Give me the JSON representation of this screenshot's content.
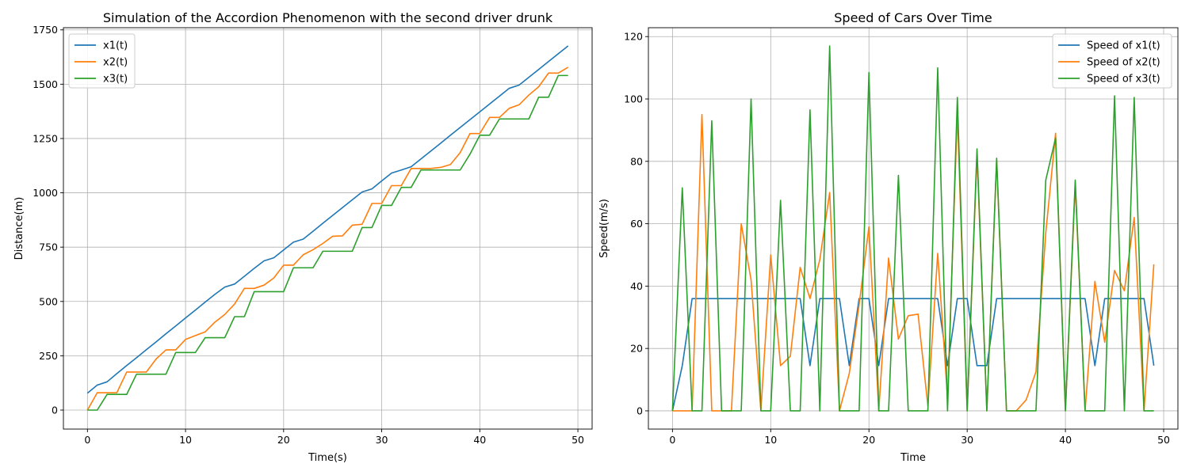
{
  "chart_data": [
    {
      "type": "line",
      "title": "Simulation of the Accordion Phenomenon with the second driver drunk",
      "xlabel": "Time(s)",
      "ylabel": "Distance(m)",
      "xlim": [
        -2.45,
        51.45
      ],
      "ylim": [
        -87.5,
        1760
      ],
      "xticks": [
        0,
        10,
        20,
        30,
        40,
        50
      ],
      "yticks": [
        0,
        250,
        500,
        750,
        1000,
        1250,
        1500,
        1750
      ],
      "grid": true,
      "legend_position": "upper-left",
      "series": [
        {
          "name": "x1(t)",
          "color": "#1f77b4",
          "x": [
            0,
            1,
            2,
            3,
            4,
            5,
            6,
            7,
            8,
            9,
            10,
            11,
            12,
            13,
            14,
            15,
            16,
            17,
            18,
            19,
            20,
            21,
            22,
            23,
            24,
            25,
            26,
            27,
            28,
            29,
            30,
            31,
            32,
            33,
            34,
            35,
            36,
            37,
            38,
            39,
            40,
            41,
            42,
            43,
            44,
            45,
            46,
            47,
            48,
            49
          ],
          "y": [
            78,
            115,
            130,
            168,
            205,
            241,
            278,
            314,
            351,
            387,
            424,
            460,
            497,
            533,
            566,
            580,
            616,
            652,
            687,
            701,
            737,
            773,
            787,
            823,
            860,
            896,
            932,
            968,
            1004,
            1018,
            1055,
            1091,
            1105,
            1120,
            1156,
            1192,
            1228,
            1265,
            1301,
            1337,
            1373,
            1409,
            1445,
            1481,
            1496,
            1532,
            1568,
            1604,
            1640,
            1676
          ]
        },
        {
          "name": "x2(t)",
          "color": "#ff7f0e",
          "x": [
            0,
            1,
            2,
            3,
            4,
            5,
            6,
            7,
            8,
            9,
            10,
            11,
            12,
            13,
            14,
            15,
            16,
            17,
            18,
            19,
            20,
            21,
            22,
            23,
            24,
            25,
            26,
            27,
            28,
            29,
            30,
            31,
            32,
            33,
            34,
            35,
            36,
            37,
            38,
            39,
            40,
            41,
            42,
            43,
            44,
            45,
            46,
            47,
            48,
            49
          ],
          "y": [
            0,
            80,
            80,
            80,
            175,
            175,
            175,
            235,
            277,
            277,
            325,
            343,
            360,
            405,
            440,
            488,
            560,
            560,
            575,
            608,
            667,
            667,
            715,
            738,
            767,
            800,
            802,
            851,
            855,
            951,
            951,
            1033,
            1033,
            1112,
            1112,
            1112,
            1117,
            1130,
            1185,
            1273,
            1273,
            1347,
            1347,
            1389,
            1405,
            1450,
            1488,
            1551,
            1551,
            1578
          ]
        },
        {
          "name": "x3(t)",
          "color": "#2ca02c",
          "x": [
            0,
            1,
            2,
            3,
            4,
            5,
            6,
            7,
            8,
            9,
            10,
            11,
            12,
            13,
            14,
            15,
            16,
            17,
            18,
            19,
            20,
            21,
            22,
            23,
            24,
            25,
            26,
            27,
            28,
            29,
            30,
            31,
            32,
            33,
            34,
            35,
            36,
            37,
            38,
            39,
            40,
            41,
            42,
            43,
            44,
            45,
            46,
            47,
            48,
            49
          ],
          "y": [
            0,
            0,
            72,
            72,
            72,
            165,
            165,
            165,
            165,
            265,
            265,
            265,
            333,
            333,
            333,
            430,
            430,
            545,
            545,
            545,
            545,
            655,
            655,
            655,
            731,
            731,
            731,
            731,
            840,
            840,
            942,
            942,
            1025,
            1025,
            1105,
            1105,
            1105,
            1105,
            1105,
            1178,
            1265,
            1265,
            1340,
            1340,
            1340,
            1340,
            1440,
            1440,
            1540,
            1540
          ]
        }
      ]
    },
    {
      "type": "line",
      "title": "Speed of Cars Over Time",
      "xlabel": "Time",
      "ylabel": "Speed(m/s)",
      "xlim": [
        -2.45,
        51.45
      ],
      "ylim": [
        -5.85,
        122.85
      ],
      "xticks": [
        0,
        10,
        20,
        30,
        40,
        50
      ],
      "yticks": [
        0,
        20,
        40,
        60,
        80,
        100,
        120
      ],
      "grid": true,
      "legend_position": "upper-right",
      "series": [
        {
          "name": "Speed of x1(t)",
          "color": "#1f77b4",
          "x": [
            0,
            1,
            2,
            3,
            4,
            5,
            6,
            7,
            8,
            9,
            10,
            11,
            12,
            13,
            14,
            15,
            16,
            17,
            18,
            19,
            20,
            21,
            22,
            23,
            24,
            25,
            26,
            27,
            28,
            29,
            30,
            31,
            32,
            33,
            34,
            35,
            36,
            37,
            38,
            39,
            40,
            41,
            42,
            43,
            44,
            45,
            46,
            47,
            48,
            49
          ],
          "y": [
            0,
            14.5,
            36,
            36,
            36,
            36,
            36,
            36,
            36,
            36,
            36,
            36,
            36,
            36,
            14.5,
            36,
            36,
            36,
            14.5,
            36,
            36,
            14.5,
            36,
            36,
            36,
            36,
            36,
            36,
            14.5,
            36,
            36,
            14.5,
            14.5,
            36,
            36,
            36,
            36,
            36,
            36,
            36,
            36,
            36,
            36,
            14.5,
            36,
            36,
            36,
            36,
            36,
            14.5
          ]
        },
        {
          "name": "Speed of x2(t)",
          "color": "#ff7f0e",
          "x": [
            0,
            1,
            2,
            3,
            4,
            5,
            6,
            7,
            8,
            9,
            10,
            11,
            12,
            13,
            14,
            15,
            16,
            17,
            18,
            19,
            20,
            21,
            22,
            23,
            24,
            25,
            26,
            27,
            28,
            29,
            30,
            31,
            32,
            33,
            34,
            35,
            36,
            37,
            38,
            39,
            40,
            41,
            42,
            43,
            44,
            45,
            46,
            47,
            48,
            49
          ],
          "y": [
            0,
            0,
            0,
            95,
            0,
            0,
            0,
            60,
            42,
            0,
            50,
            14.5,
            17.5,
            46,
            36,
            48.5,
            70,
            0,
            12,
            34,
            59,
            0,
            49,
            23,
            30.5,
            31,
            1.5,
            50.5,
            4,
            95.5,
            0,
            82,
            0,
            80.5,
            0,
            0,
            3.5,
            12.5,
            57,
            89,
            0,
            72.5,
            0,
            41.5,
            22,
            45,
            38.5,
            62,
            0,
            47
          ]
        },
        {
          "name": "Speed of x3(t)",
          "color": "#2ca02c",
          "x": [
            0,
            1,
            2,
            3,
            4,
            5,
            6,
            7,
            8,
            9,
            10,
            11,
            12,
            13,
            14,
            15,
            16,
            17,
            18,
            19,
            20,
            21,
            22,
            23,
            24,
            25,
            26,
            27,
            28,
            29,
            30,
            31,
            32,
            33,
            34,
            35,
            36,
            37,
            38,
            39,
            40,
            41,
            42,
            43,
            44,
            45,
            46,
            47,
            48,
            49
          ],
          "y": [
            0,
            71.5,
            0,
            0,
            93,
            0,
            0,
            0,
            100,
            0,
            0,
            67.5,
            0,
            0,
            96.5,
            0,
            117,
            0,
            0,
            0,
            108.5,
            0,
            0,
            75.5,
            0,
            0,
            0,
            110,
            0,
            100.5,
            0,
            84,
            0,
            81,
            0,
            0,
            0,
            0,
            74,
            87.5,
            0,
            74,
            0,
            0,
            0,
            101,
            0,
            100.5,
            0,
            0
          ]
        }
      ]
    }
  ]
}
